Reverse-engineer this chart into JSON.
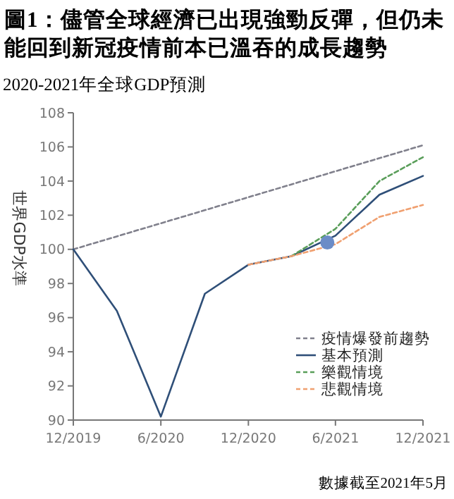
{
  "chart_data": {
    "type": "line",
    "title": "圖1：儘管全球經濟已出現強勁反彈，但仍未能回到新冠疫情前本已溫吞的成長趨勢",
    "subtitle": "2020-2021年全球GDP預測",
    "ylabel": "世界GDP水準",
    "annotations": [
      "數據截至2021年5月"
    ],
    "xlim": [
      "2019-12",
      "2021-12"
    ],
    "xticks": [
      {
        "value": "2019-12",
        "label": "12/2019"
      },
      {
        "value": "2020-06",
        "label": "6/2020"
      },
      {
        "value": "2020-12",
        "label": "12/2020"
      },
      {
        "value": "2021-06",
        "label": "6/2021"
      },
      {
        "value": "2021-12",
        "label": "12/2021"
      }
    ],
    "ylim": [
      90,
      108
    ],
    "yticks": [
      90,
      92,
      94,
      96,
      98,
      100,
      102,
      104,
      106,
      108
    ],
    "grid": false,
    "legend": "bottom right",
    "marker": "none",
    "series": [
      {
        "name": "疫情爆發前趨勢",
        "color": "#80808c",
        "line_style": "dashed",
        "x": [
          "2019-12",
          "2021-12"
        ],
        "values": [
          100,
          106.1
        ]
      },
      {
        "name": "基本預測",
        "color": "#2f4f78",
        "line_style": "solid",
        "x": [
          "2019-12",
          "2020-03",
          "2020-06",
          "2020-09",
          "2020-12",
          "2021-03",
          "2021-06",
          "2021-09",
          "2021-12"
        ],
        "values": [
          100,
          96.4,
          90.2,
          97.4,
          99.1,
          99.6,
          100.8,
          103.2,
          104.3
        ]
      },
      {
        "name": "樂觀情境",
        "color": "#5a9e5a",
        "line_style": "dashed",
        "x": [
          "2021-03",
          "2021-06",
          "2021-09",
          "2021-12"
        ],
        "values": [
          99.6,
          101.2,
          104.0,
          105.4
        ]
      },
      {
        "name": "悲觀情境",
        "color": "#f0a070",
        "line_style": "dashed",
        "x": [
          "2020-12",
          "2021-03",
          "2021-06",
          "2021-09",
          "2021-12"
        ],
        "values": [
          99.1,
          99.6,
          100.3,
          101.9,
          102.6
        ]
      },
      {
        "type": "scatter",
        "color": "#6b8cc7",
        "marker": "circle",
        "x": [
          "2021-05-15"
        ],
        "values": [
          100.4
        ]
      }
    ]
  }
}
